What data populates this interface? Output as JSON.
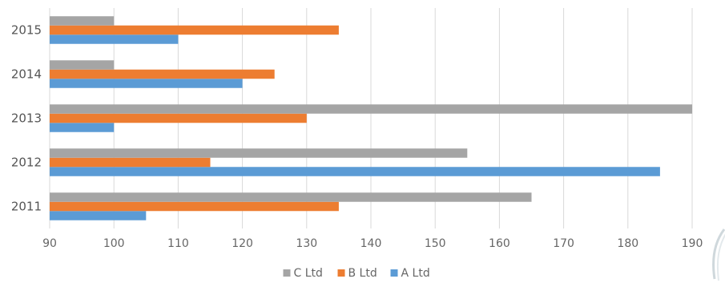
{
  "chart_data": {
    "type": "bar",
    "orientation": "horizontal",
    "categories": [
      "2011",
      "2012",
      "2013",
      "2014",
      "2015"
    ],
    "series": [
      {
        "name": "A Ltd",
        "color": "#5b9bd5",
        "values": [
          105,
          185,
          100,
          120,
          110
        ]
      },
      {
        "name": "B Ltd",
        "color": "#ed7d31",
        "values": [
          135,
          115,
          130,
          125,
          135
        ]
      },
      {
        "name": "C Ltd",
        "color": "#a5a5a5",
        "values": [
          165,
          155,
          190,
          100,
          100
        ]
      }
    ],
    "xlim": [
      90,
      190
    ],
    "xticks": [
      90,
      100,
      110,
      120,
      130,
      140,
      150,
      160,
      170,
      180,
      190
    ],
    "grid": true,
    "legend": {
      "position": "bottom",
      "order": [
        "C Ltd",
        "B Ltd",
        "A Ltd"
      ]
    },
    "title": "",
    "xlabel": "",
    "ylabel": ""
  }
}
